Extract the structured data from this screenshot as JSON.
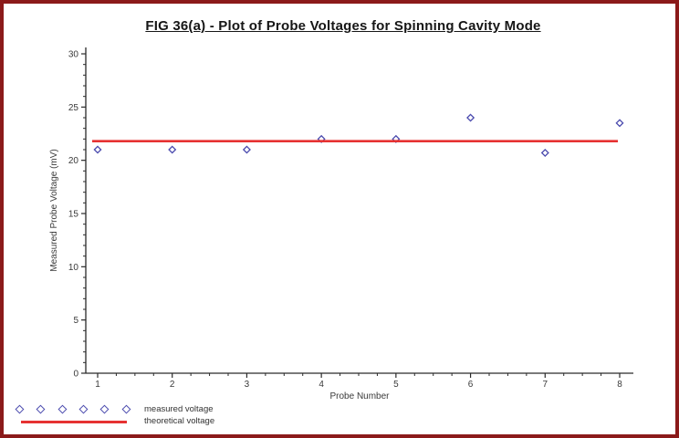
{
  "frame": {
    "border_color": "#8b1a1a",
    "background": "#ffffff"
  },
  "title": "FIG 36(a) - Plot of Probe Voltages for Spinning Cavity Mode",
  "chart_data": {
    "type": "scatter",
    "title": "FIG 36(a) - Plot of Probe Voltages for Spinning Cavity Mode",
    "xlabel": "Probe Number",
    "ylabel": "Measured Probe Voltage (mV)",
    "xlim": [
      1,
      8
    ],
    "ylim": [
      0,
      30
    ],
    "x_major_ticks": [
      1,
      2,
      3,
      4,
      5,
      6,
      7,
      8
    ],
    "x_minor_step": 0.25,
    "y_major_ticks": [
      0,
      5,
      10,
      15,
      20,
      25,
      30
    ],
    "y_minor_step": 1,
    "grid": false,
    "legend_position": "bottom-left",
    "axis_color": "#2a2a2a",
    "tick_label_color": "#3a3a3a",
    "series": [
      {
        "name": "measured voltage",
        "type": "scatter",
        "marker": "open-diamond",
        "color": "#4a4aae",
        "x": [
          1,
          2,
          3,
          4,
          5,
          6,
          7,
          8
        ],
        "values": [
          21,
          21,
          21,
          22,
          22,
          24,
          20.7,
          23.5
        ]
      },
      {
        "name": "theoretical voltage",
        "type": "hline",
        "color": "#e63232",
        "value": 21.8
      }
    ]
  },
  "legend": {
    "entries": [
      {
        "label": "measured voltage",
        "marker": "diamond-row",
        "marker_count": 6
      },
      {
        "label": "theoretical voltage",
        "marker": "line"
      }
    ]
  }
}
